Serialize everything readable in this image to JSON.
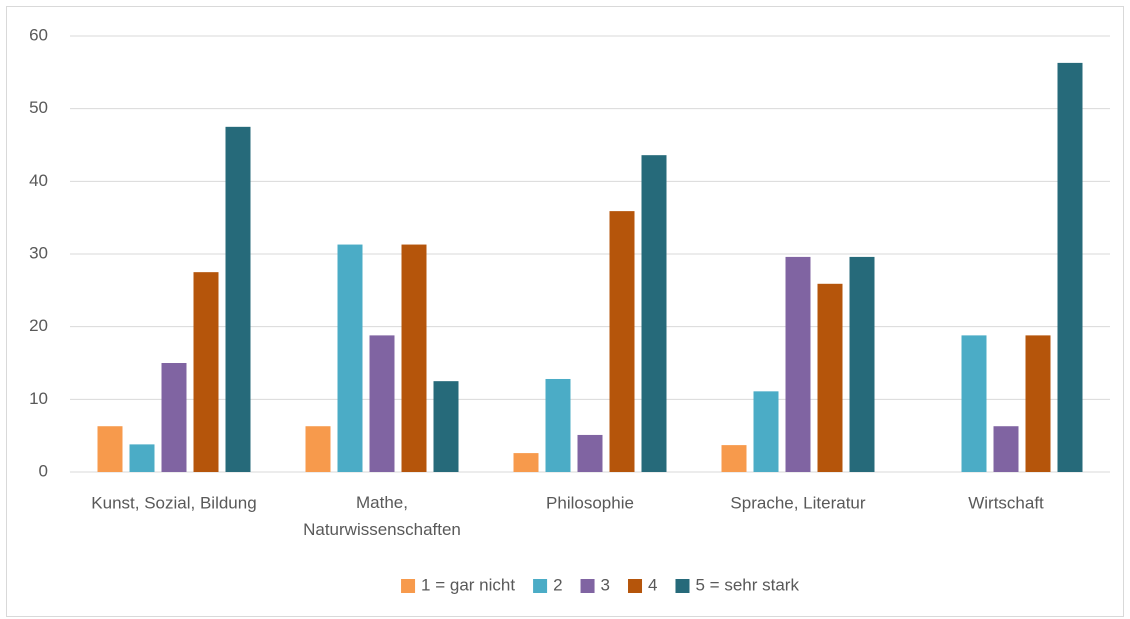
{
  "chart_data": {
    "type": "bar",
    "categories": [
      "Kunst, Sozial, Bildung",
      "Mathe, Naturwissenschaften",
      "Philosophie",
      "Sprache, Literatur",
      "Wirtschaft"
    ],
    "series": [
      {
        "name": "1 = gar nicht",
        "color": "#f79a4c",
        "values": [
          6.3,
          6.3,
          2.6,
          3.7,
          0
        ]
      },
      {
        "name": "2",
        "color": "#4bacc6",
        "values": [
          3.8,
          31.3,
          12.8,
          11.1,
          18.8
        ]
      },
      {
        "name": "3",
        "color": "#8064a2",
        "values": [
          15,
          18.8,
          5.1,
          29.6,
          6.3
        ]
      },
      {
        "name": "4",
        "color": "#b5550b",
        "values": [
          27.5,
          31.3,
          35.9,
          25.9,
          18.8
        ]
      },
      {
        "name": "5 = sehr stark",
        "color": "#266a7a",
        "values": [
          47.5,
          12.5,
          43.6,
          29.6,
          56.3
        ]
      }
    ],
    "ylim": [
      0,
      60
    ],
    "yticks": [
      0,
      10,
      20,
      30,
      40,
      50,
      60
    ],
    "grid": true,
    "legend": "bottom"
  }
}
